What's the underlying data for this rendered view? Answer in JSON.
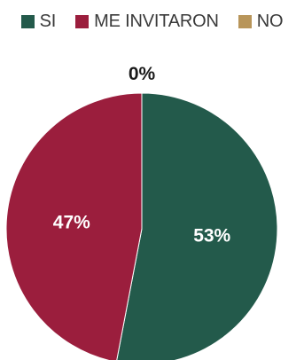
{
  "chart_data": {
    "type": "pie",
    "categories": [
      "SI",
      "ME INVITARON",
      "NO"
    ],
    "values": [
      53,
      47,
      0
    ],
    "labels": [
      "53%",
      "47%",
      "0%"
    ],
    "colors": [
      "#235a4b",
      "#9b1e3d",
      "#b8955a"
    ],
    "label_colors": [
      "#ffffff",
      "#ffffff",
      "#1a1a1a"
    ],
    "legend_position": "top",
    "start_angle_deg": 0,
    "direction": "clockwise"
  }
}
